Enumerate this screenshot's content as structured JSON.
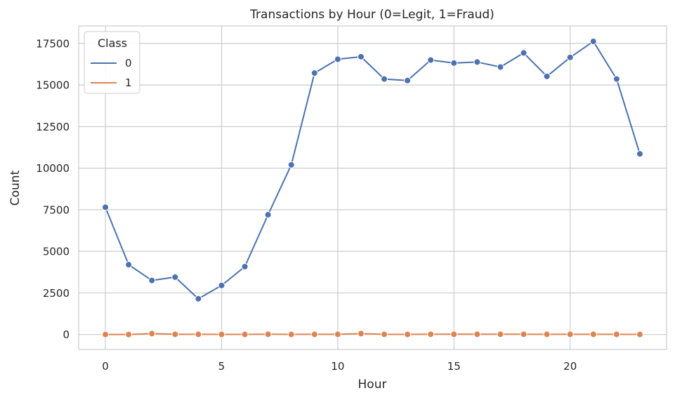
{
  "chart_data": {
    "type": "line",
    "title": "Transactions by Hour (0=Legit, 1=Fraud)",
    "xlabel": "Hour",
    "ylabel": "Count",
    "xlim": [
      -1.15,
      24.15
    ],
    "ylim": [
      -900,
      18550
    ],
    "xticks": [
      0,
      5,
      10,
      15,
      20
    ],
    "yticks": [
      0,
      2500,
      5000,
      7500,
      10000,
      12500,
      15000,
      17500
    ],
    "grid": true,
    "legend": {
      "title": "Class",
      "placement": "top-left"
    },
    "x": [
      0,
      1,
      2,
      3,
      4,
      5,
      6,
      7,
      8,
      9,
      10,
      11,
      12,
      13,
      14,
      15,
      16,
      17,
      18,
      19,
      20,
      21,
      22,
      23
    ],
    "series": [
      {
        "name": "0",
        "color": "#4c72b0",
        "values": [
          7650,
          4200,
          3250,
          3450,
          2150,
          2950,
          4080,
          7200,
          10200,
          15720,
          16550,
          16700,
          15360,
          15270,
          16500,
          16320,
          16380,
          16080,
          16930,
          15520,
          16660,
          17620,
          15360,
          10860
        ]
      },
      {
        "name": "1",
        "color": "#dd8452",
        "values": [
          0,
          0,
          55,
          15,
          10,
          5,
          5,
          15,
          5,
          10,
          10,
          55,
          10,
          5,
          15,
          15,
          15,
          15,
          15,
          10,
          10,
          10,
          10,
          5
        ]
      }
    ]
  }
}
